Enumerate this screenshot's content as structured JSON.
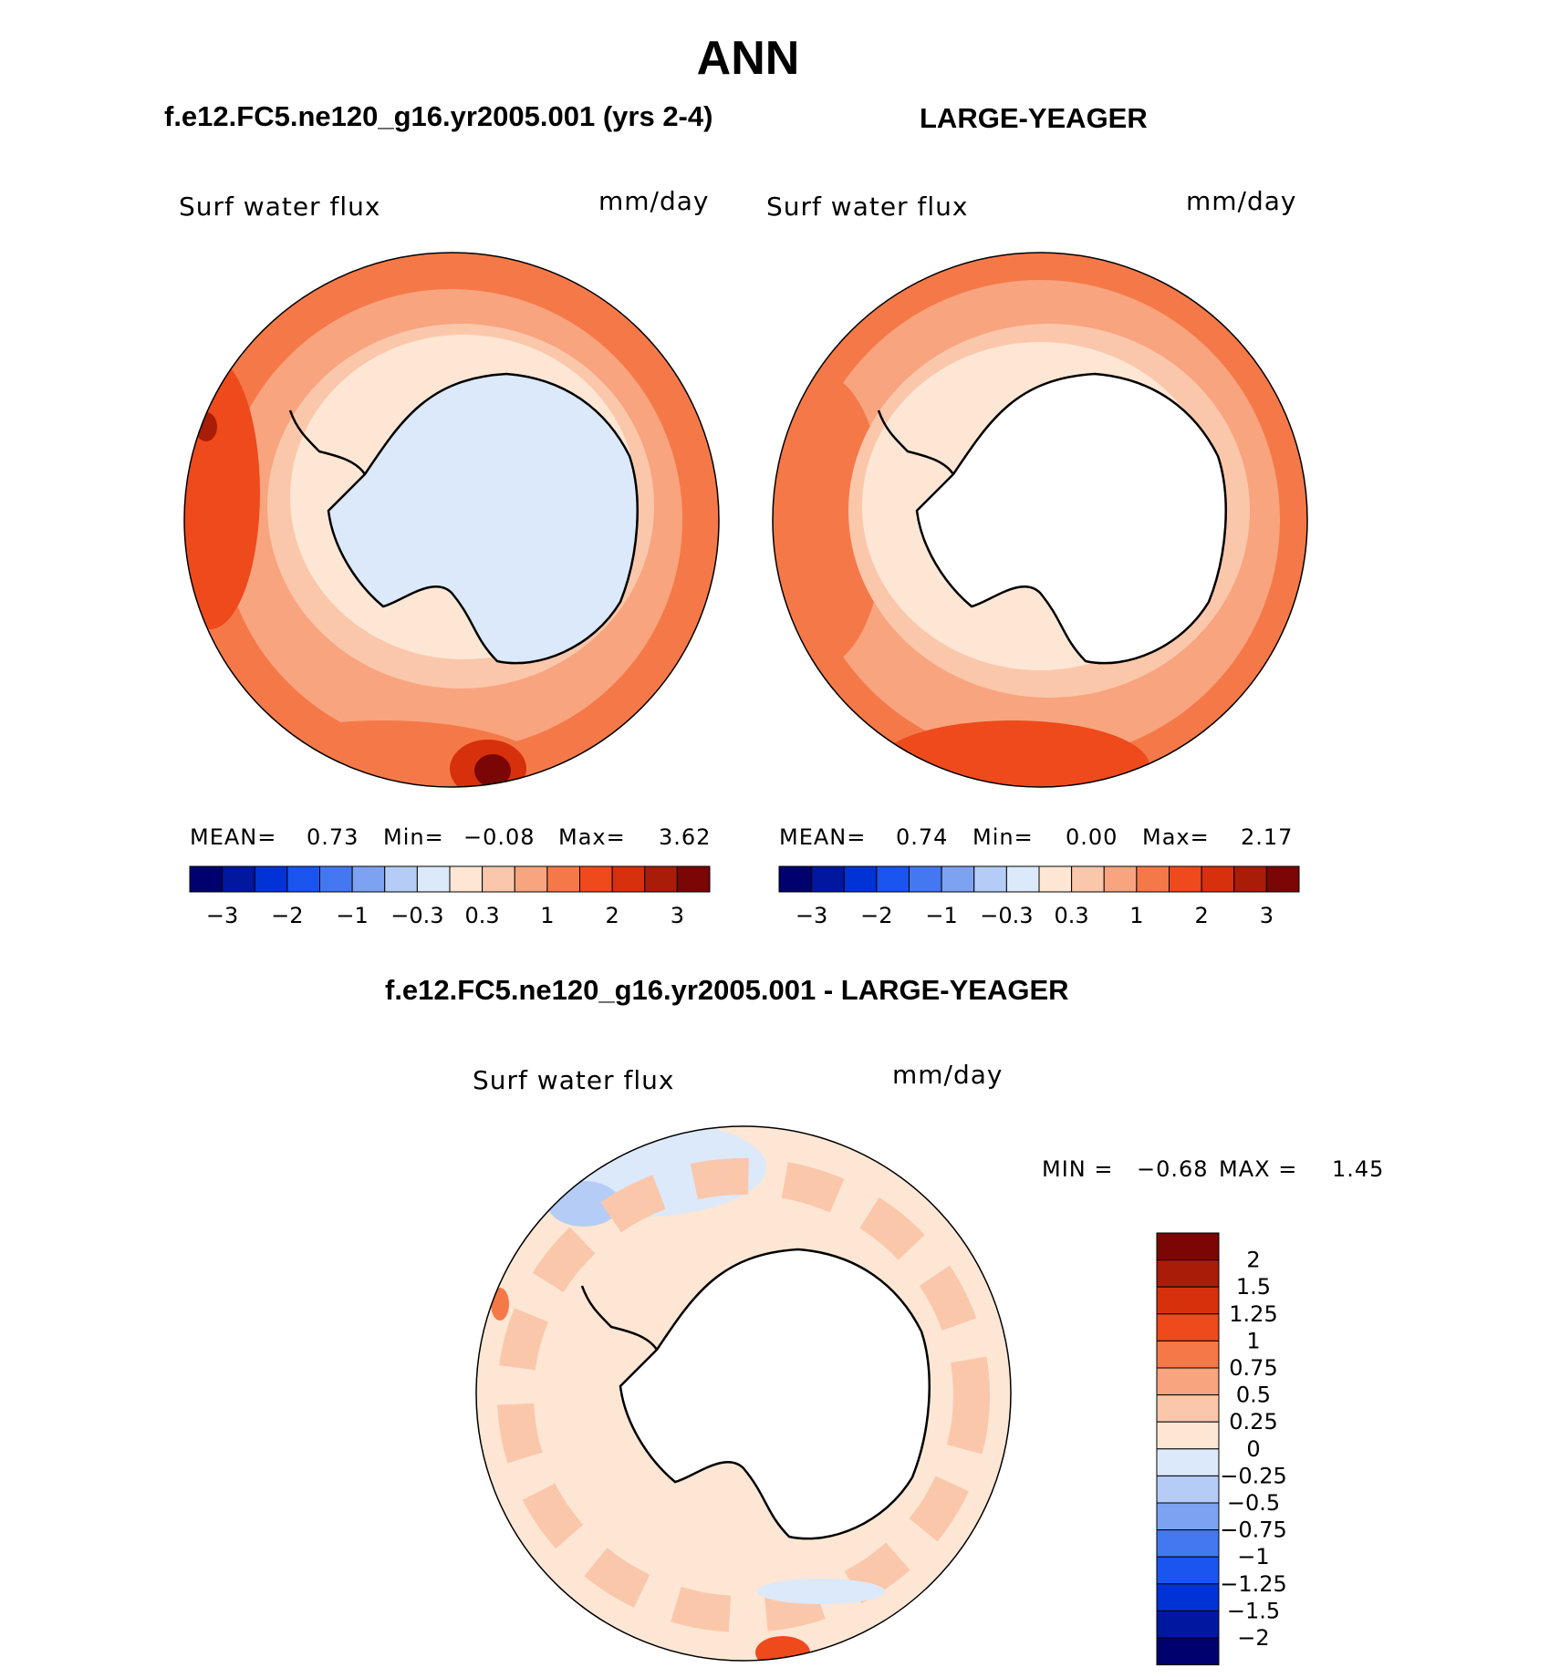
{
  "title": "ANN",
  "panels": [
    {
      "id": "model",
      "title": "f.e12.FC5.ne120_g16.yr2005.001 (yrs 2-4)",
      "field_label": "Surf water flux",
      "units": "mm/day",
      "stats": {
        "mean_label": "MEAN=",
        "mean": "0.73",
        "min_label": "Min=",
        "min": "−0.08",
        "max_label": "Max=",
        "max": "3.62"
      },
      "colorbar_ticks": [
        "−3",
        "−2",
        "−1",
        "−0.3",
        "0.3",
        "1",
        "2",
        "3"
      ]
    },
    {
      "id": "obs",
      "title": "LARGE-YEAGER",
      "field_label": "Surf water flux",
      "units": "mm/day",
      "stats": {
        "mean_label": "MEAN=",
        "mean": "0.74",
        "min_label": "Min=",
        "min": "0.00",
        "max_label": "Max=",
        "max": "2.17"
      },
      "colorbar_ticks": [
        "−3",
        "−2",
        "−1",
        "−0.3",
        "0.3",
        "1",
        "2",
        "3"
      ]
    }
  ],
  "diff_panel": {
    "title": "f.e12.FC5.ne120_g16.yr2005.001 - LARGE-YEAGER",
    "field_label": "Surf water flux",
    "units": "mm/day",
    "stats": {
      "min_label": "MIN =",
      "min": "−0.68",
      "max_label": "MAX =",
      "max": "1.45"
    },
    "colorbar_ticks": [
      "2",
      "1.5",
      "1.25",
      "1",
      "0.75",
      "0.5",
      "0.25",
      "0",
      "−0.25",
      "−0.5",
      "−0.75",
      "−1",
      "−1.25",
      "−1.5",
      "−2"
    ]
  },
  "colors": {
    "main_scale": [
      "#00006e",
      "#0018a0",
      "#0033d6",
      "#1a55f0",
      "#4478f0",
      "#7ea2f2",
      "#b5cdf6",
      "#dbe9fa",
      "#fde6d4",
      "#fbc7ab",
      "#f8a47f",
      "#f57948",
      "#ee4a1c",
      "#d6310c",
      "#a81c08",
      "#7a0606"
    ],
    "diff_scale": [
      "#7a0606",
      "#a81c08",
      "#d6310c",
      "#ee4a1c",
      "#f57948",
      "#f8a47f",
      "#fbc7ab",
      "#fde6d4",
      "#dbe9fa",
      "#b5cdf6",
      "#7ea2f2",
      "#4478f0",
      "#1a55f0",
      "#0033d6",
      "#0018a0",
      "#00006e"
    ],
    "land": "#ffffff",
    "coast": "#000000"
  }
}
